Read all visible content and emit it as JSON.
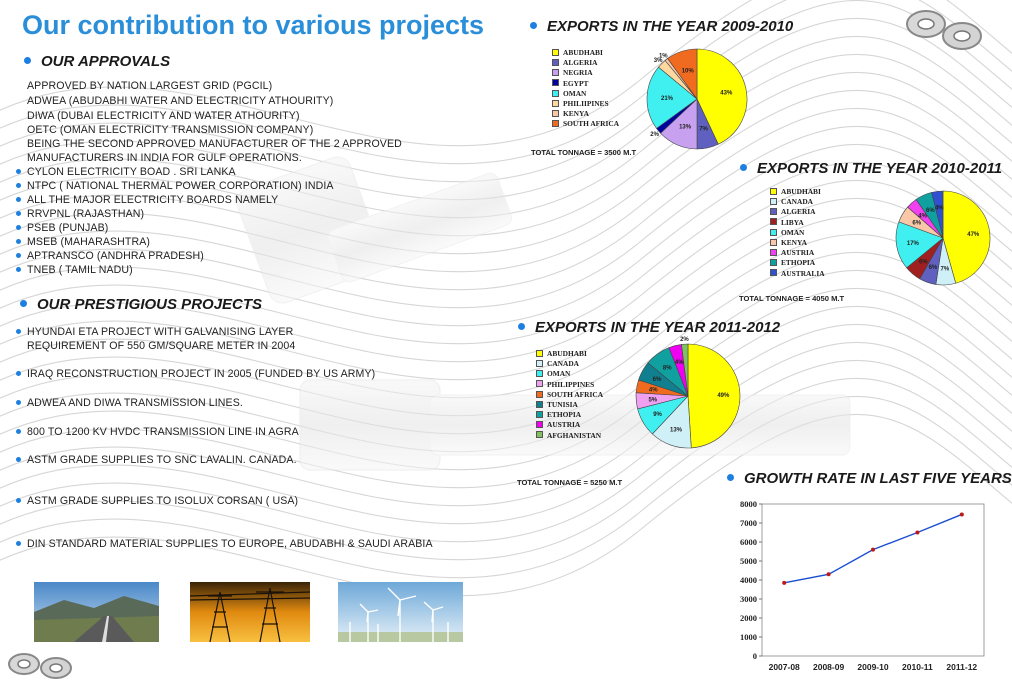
{
  "title": "Our contribution to various projects",
  "approvals": {
    "heading": "OUR  APPROVALS",
    "lines": [
      "APPROVED BY NATION LARGEST GRID (PGCIL)",
      "ADWEA (ABUDABHI WATER AND ELECTRICITY ATHOURITY)",
      "DIWA (DUBAI ELECTRICITY AND WATER ATHOURITY)",
      "OETC (OMAN ELECTRICITY TRANSMISSION COMPANY)",
      "BEING THE SECOND APPROVED MANUFACTURER OF THE 2 APPROVED",
      "MANUFACTURERS IN INDIA FOR GULF OPERATIONS."
    ],
    "bullets": [
      "CYLON ELECTRICITY BOAD . SRI LANKA",
      "NTPC ( NATIONAL THERMAL POWER CORPORATION) INDIA",
      "ALL THE MAJOR ELECTRICITY BOARDS NAMELY",
      "RRVPNL (RAJASTHAN)",
      "PSEB (PUNJAB)",
      "MSEB (MAHARASHTRA)",
      "APTRANSCO (ANDHRA PRADESH)",
      "TNEB ( TAMIL NADU)"
    ]
  },
  "projects": {
    "heading": "OUR PRESTIGIOUS PROJECTS",
    "items": [
      [
        "HYUNDAI ETA PROJECT WITH GALVANISING LAYER",
        "REQUIREMENT OF 550 GM/SQUARE METER IN 2004"
      ],
      [
        "IRAQ RECONSTRUCTION PROJECT IN 2005 (FUNDED BY US ARMY)"
      ],
      [
        "ADWEA AND DIWA TRANSMISSION LINES."
      ],
      [
        "800 TO 1200 KV HVDC TRANSMISSION LINE IN AGRA"
      ],
      [
        "ASTM GRADE SUPPLIES TO SNC LAVALIN. CANADA."
      ],
      [
        "ASTM GRADE SUPPLIES TO ISOLUX CORSAN ( USA)"
      ],
      [
        "DIN STANDARD MATERIAL SUPPLIES TO EUROPE, ABUDABHI  & SAUDI  ARABIA"
      ]
    ]
  },
  "chart_data": [
    {
      "type": "pie",
      "title": "EXPORTS IN THE YEAR 2009-2010",
      "total": "TOTAL TONNAGE = 3500 M.T",
      "labels": [
        "ABUDHABI",
        "ALGERIA",
        "NEGRIA",
        "EGYPT",
        "OMAN",
        "PHILIIPINES",
        "KENYA",
        "SOUTH AFRICA"
      ],
      "values": [
        43,
        7,
        13,
        2,
        21,
        3,
        1,
        10
      ],
      "colors": [
        "#ffff00",
        "#6060c0",
        "#c8a0f0",
        "#0000a0",
        "#40f0f0",
        "#ffd8a0",
        "#f8c8a8",
        "#f06a20"
      ],
      "slice_labels": [
        "43%",
        "7%",
        "13%",
        "2%",
        "21%",
        "3%",
        "1%",
        "10%"
      ]
    },
    {
      "type": "pie",
      "title": "EXPORTS IN THE YEAR 2010-2011",
      "total": "TOTAL TONNAGE = 4050 M.T",
      "labels": [
        "ABUDHABI",
        "CANADA",
        "ALGERIA",
        "LIBYA",
        "OMAN",
        "KENYA",
        "AUSTRIA",
        "ETHOPIA",
        "AUSTRALIA"
      ],
      "values": [
        47,
        7,
        6,
        6,
        17,
        6,
        4,
        6,
        4
      ],
      "colors": [
        "#ffff00",
        "#d0f0f8",
        "#6060c0",
        "#a02020",
        "#40f0f0",
        "#f8c8a8",
        "#f040f0",
        "#10a0a0",
        "#3050d0"
      ],
      "slice_labels": [
        "47%",
        "7%",
        "6%",
        "6%",
        "17%",
        "6%",
        "4%",
        "6%",
        "4%"
      ]
    },
    {
      "type": "pie",
      "title": "EXPORTS IN THE YEAR 2011-2012",
      "total": "TOTAL TONNAGE =   5250  M.T",
      "labels": [
        "ABUDHABI",
        "CANADA",
        "OMAN",
        "PHILIPPINES",
        "SOUTH AFRICA",
        "TUNISIA",
        "ETHOPIA",
        "AUSTRIA",
        "AFGHANISTAN"
      ],
      "values": [
        49,
        13,
        9,
        5,
        4,
        6,
        8,
        4,
        2
      ],
      "colors": [
        "#ffff00",
        "#d0f0f8",
        "#40f0f0",
        "#f0a0f0",
        "#f06a20",
        "#108090",
        "#10a0a0",
        "#f000f0",
        "#80c060"
      ],
      "slice_labels": [
        "49%",
        "13%",
        "9%",
        "5%",
        "4%",
        "6%",
        "8%",
        "4%",
        "2%"
      ]
    },
    {
      "type": "line",
      "title": "GROWTH RATE IN LAST FIVE YEARS",
      "categories": [
        "2007-08",
        "2008-09",
        "2009-10",
        "2010-11",
        "2011-12"
      ],
      "values": [
        3850,
        4300,
        5600,
        6500,
        7450
      ],
      "ylim": [
        0,
        8000
      ],
      "yticks": [
        0,
        1000,
        2000,
        3000,
        4000,
        5000,
        6000,
        7000,
        8000
      ],
      "line_color": "#1a4fd0",
      "marker_color": "#c01818"
    }
  ]
}
